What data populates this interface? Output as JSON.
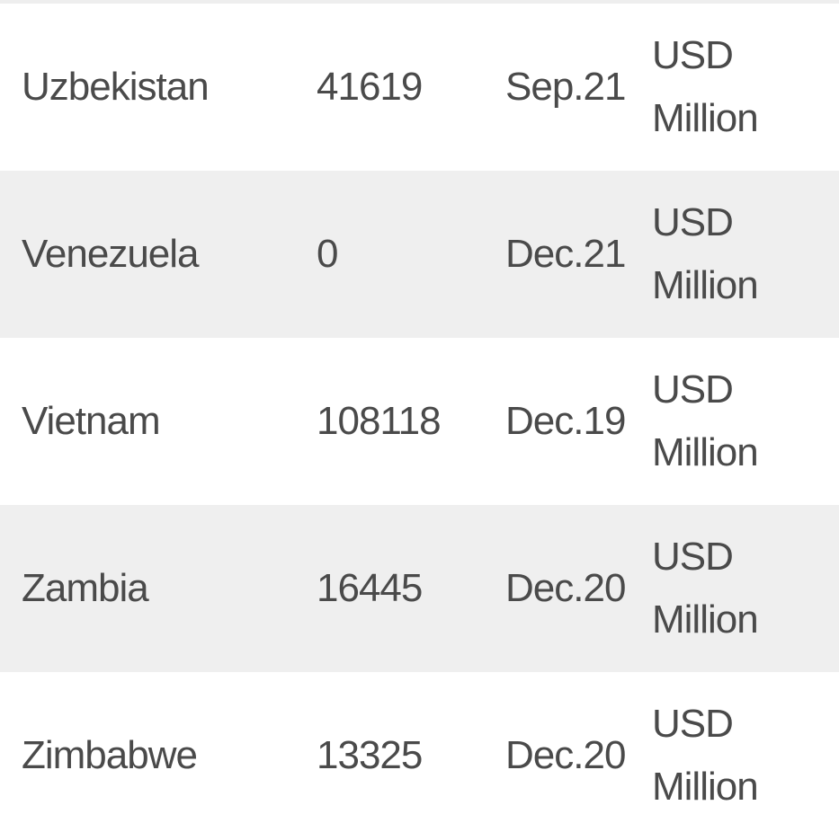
{
  "rows": [
    {
      "country": "Uzbekistan",
      "value": "41619",
      "date": "Sep.21",
      "unit_line1": "USD",
      "unit_line2": "Million"
    },
    {
      "country": "Venezuela",
      "value": "0",
      "date": "Dec.21",
      "unit_line1": "USD",
      "unit_line2": "Million"
    },
    {
      "country": "Vietnam",
      "value": "108118",
      "date": "Dec.19",
      "unit_line1": "USD",
      "unit_line2": "Million"
    },
    {
      "country": "Zambia",
      "value": "16445",
      "date": "Dec.20",
      "unit_line1": "USD",
      "unit_line2": "Million"
    },
    {
      "country": "Zimbabwe",
      "value": "13325",
      "date": "Dec.20",
      "unit_line1": "USD",
      "unit_line2": "Million"
    }
  ]
}
